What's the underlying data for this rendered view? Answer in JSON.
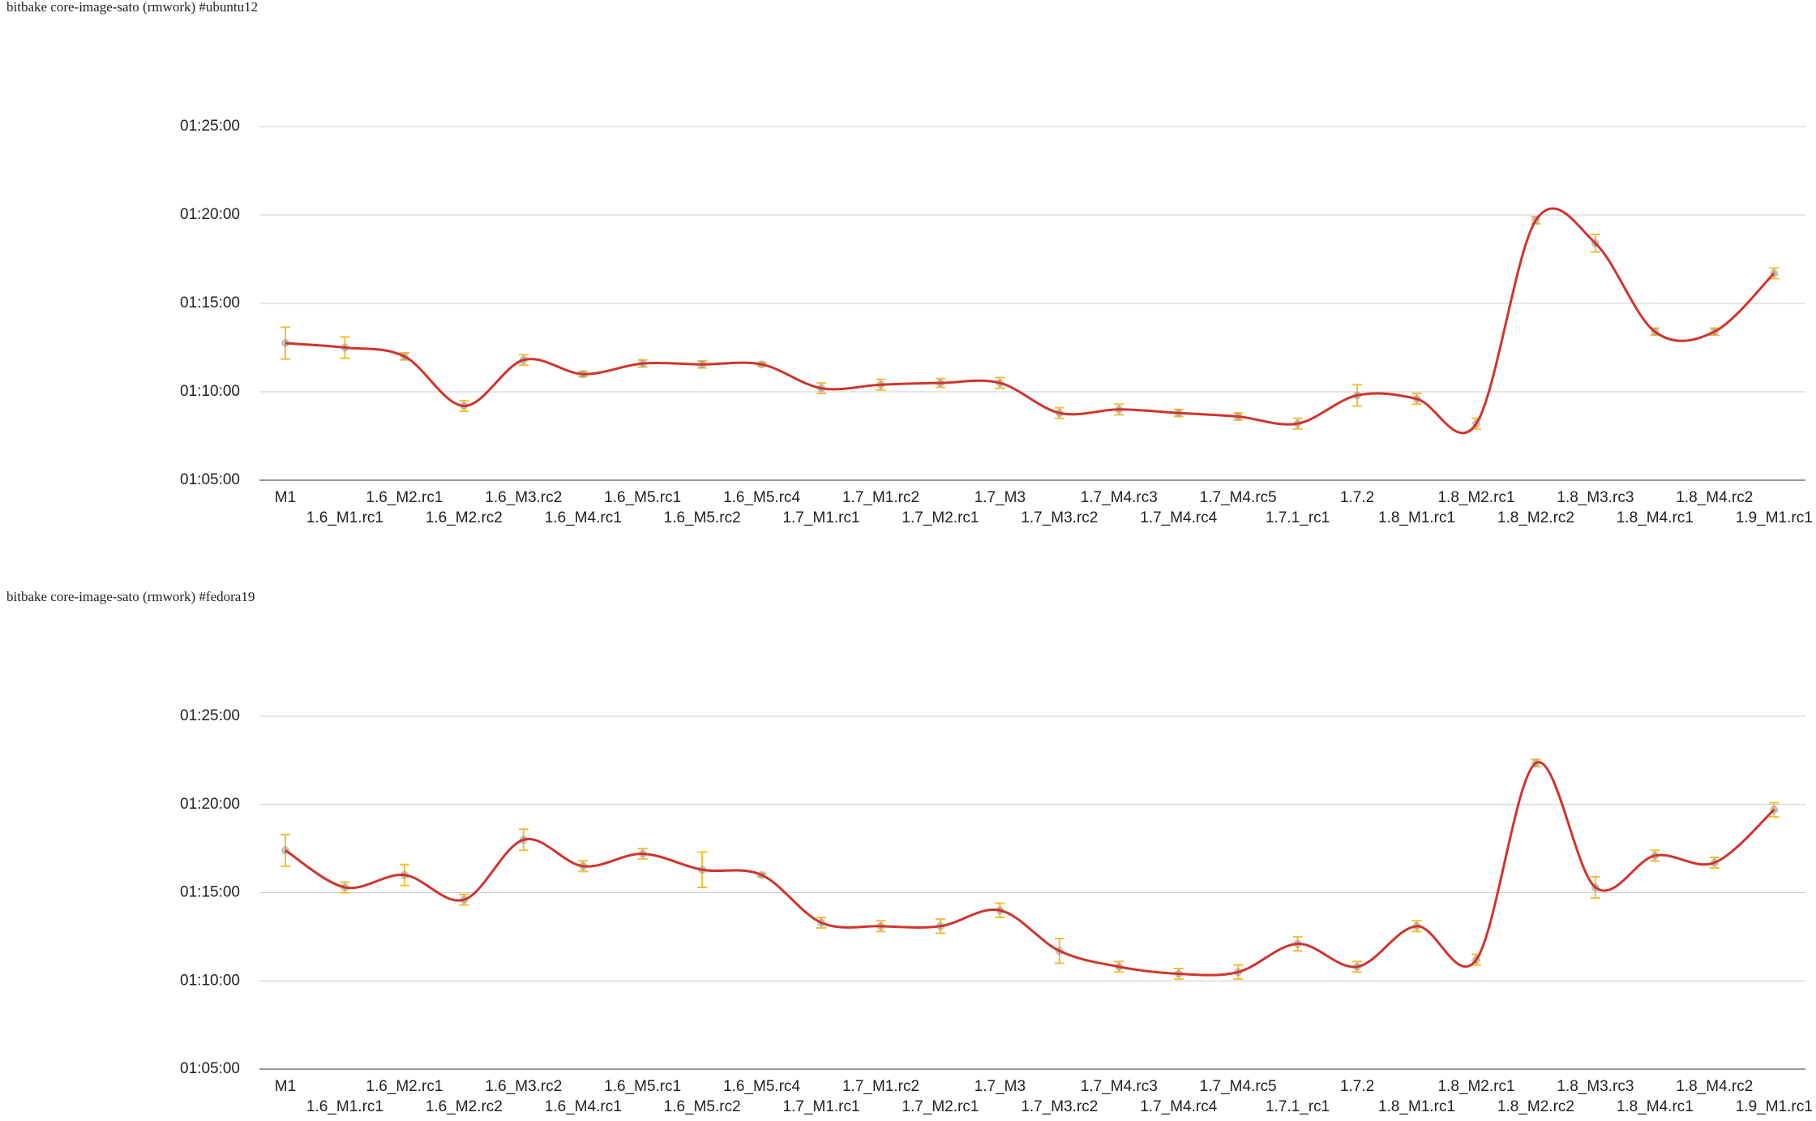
{
  "chart_data": [
    {
      "type": "line",
      "title": "bitbake core-image-sato (rmwork) #ubuntu12",
      "categories": [
        "M1",
        "1.6_M1.rc1",
        "1.6_M2.rc1",
        "1.6_M2.rc2",
        "1.6_M3.rc2",
        "1.6_M4.rc1",
        "1.6_M5.rc1",
        "1.6_M5.rc2",
        "1.6_M5.rc4",
        "1.7_M1.rc1",
        "1.7_M1.rc2",
        "1.7_M2.rc1",
        "1.7_M3",
        "1.7_M3.rc2",
        "1.7_M4.rc3",
        "1.7_M4.rc4",
        "1.7_M4.rc5",
        "1.7.1_rc1",
        "1.7.2",
        "1.8_M1.rc1",
        "1.8_M2.rc1",
        "1.8_M2.rc2",
        "1.8_M3.rc3",
        "1.8_M4.rc1",
        "1.8_M4.rc2",
        "1.9_M1.rc1"
      ],
      "values": [
        72.75,
        72.5,
        72.0,
        69.2,
        71.8,
        71.0,
        71.6,
        71.55,
        71.55,
        70.2,
        70.4,
        70.5,
        70.5,
        68.8,
        69.0,
        68.8,
        68.6,
        68.2,
        69.8,
        69.6,
        68.2,
        79.7,
        78.4,
        73.4,
        73.4,
        76.7
      ],
      "errors": [
        0.9,
        0.6,
        0.2,
        0.3,
        0.3,
        0.15,
        0.2,
        0.2,
        0.1,
        0.3,
        0.3,
        0.25,
        0.3,
        0.3,
        0.3,
        0.2,
        0.2,
        0.3,
        0.6,
        0.3,
        0.3,
        0.2,
        0.5,
        0.2,
        0.2,
        0.3
      ],
      "color": "#d0342c",
      "error_color": "#f0c030",
      "ylim": [
        65,
        85
      ],
      "yticks": [
        {
          "value": 65,
          "label": "01:05:00"
        },
        {
          "value": 70,
          "label": "01:10:00"
        },
        {
          "value": 75,
          "label": "01:15:00"
        },
        {
          "value": 80,
          "label": "01:20:00"
        },
        {
          "value": 85,
          "label": "01:25:00"
        }
      ],
      "grid": true
    },
    {
      "type": "line",
      "title": "bitbake core-image-sato (rmwork) #fedora19",
      "categories": [
        "M1",
        "1.6_M1.rc1",
        "1.6_M2.rc1",
        "1.6_M2.rc2",
        "1.6_M3.rc2",
        "1.6_M4.rc1",
        "1.6_M5.rc1",
        "1.6_M5.rc2",
        "1.6_M5.rc4",
        "1.7_M1.rc1",
        "1.7_M1.rc2",
        "1.7_M2.rc1",
        "1.7_M3",
        "1.7_M3.rc2",
        "1.7_M4.rc3",
        "1.7_M4.rc4",
        "1.7_M4.rc5",
        "1.7.1_rc1",
        "1.7.2",
        "1.8_M1.rc1",
        "1.8_M2.rc1",
        "1.8_M2.rc2",
        "1.8_M3.rc3",
        "1.8_M4.rc1",
        "1.8_M4.rc2",
        "1.9_M1.rc1"
      ],
      "values": [
        77.4,
        75.3,
        76.0,
        74.6,
        78.0,
        76.5,
        77.2,
        76.3,
        76.0,
        73.3,
        73.1,
        73.1,
        74.0,
        71.7,
        70.8,
        70.4,
        70.5,
        72.1,
        70.8,
        73.1,
        71.2,
        82.35,
        75.3,
        77.1,
        76.7,
        79.7
      ],
      "errors": [
        0.9,
        0.3,
        0.6,
        0.3,
        0.6,
        0.3,
        0.3,
        1.0,
        0.1,
        0.3,
        0.3,
        0.4,
        0.4,
        0.7,
        0.3,
        0.3,
        0.4,
        0.4,
        0.3,
        0.3,
        0.3,
        0.2,
        0.6,
        0.3,
        0.3,
        0.4
      ],
      "color": "#d0342c",
      "error_color": "#f0c030",
      "ylim": [
        65,
        85
      ],
      "yticks": [
        {
          "value": 65,
          "label": "01:05:00"
        },
        {
          "value": 70,
          "label": "01:10:00"
        },
        {
          "value": 75,
          "label": "01:15:00"
        },
        {
          "value": 80,
          "label": "01:20:00"
        },
        {
          "value": 85,
          "label": "01:25:00"
        }
      ],
      "grid": true
    }
  ]
}
